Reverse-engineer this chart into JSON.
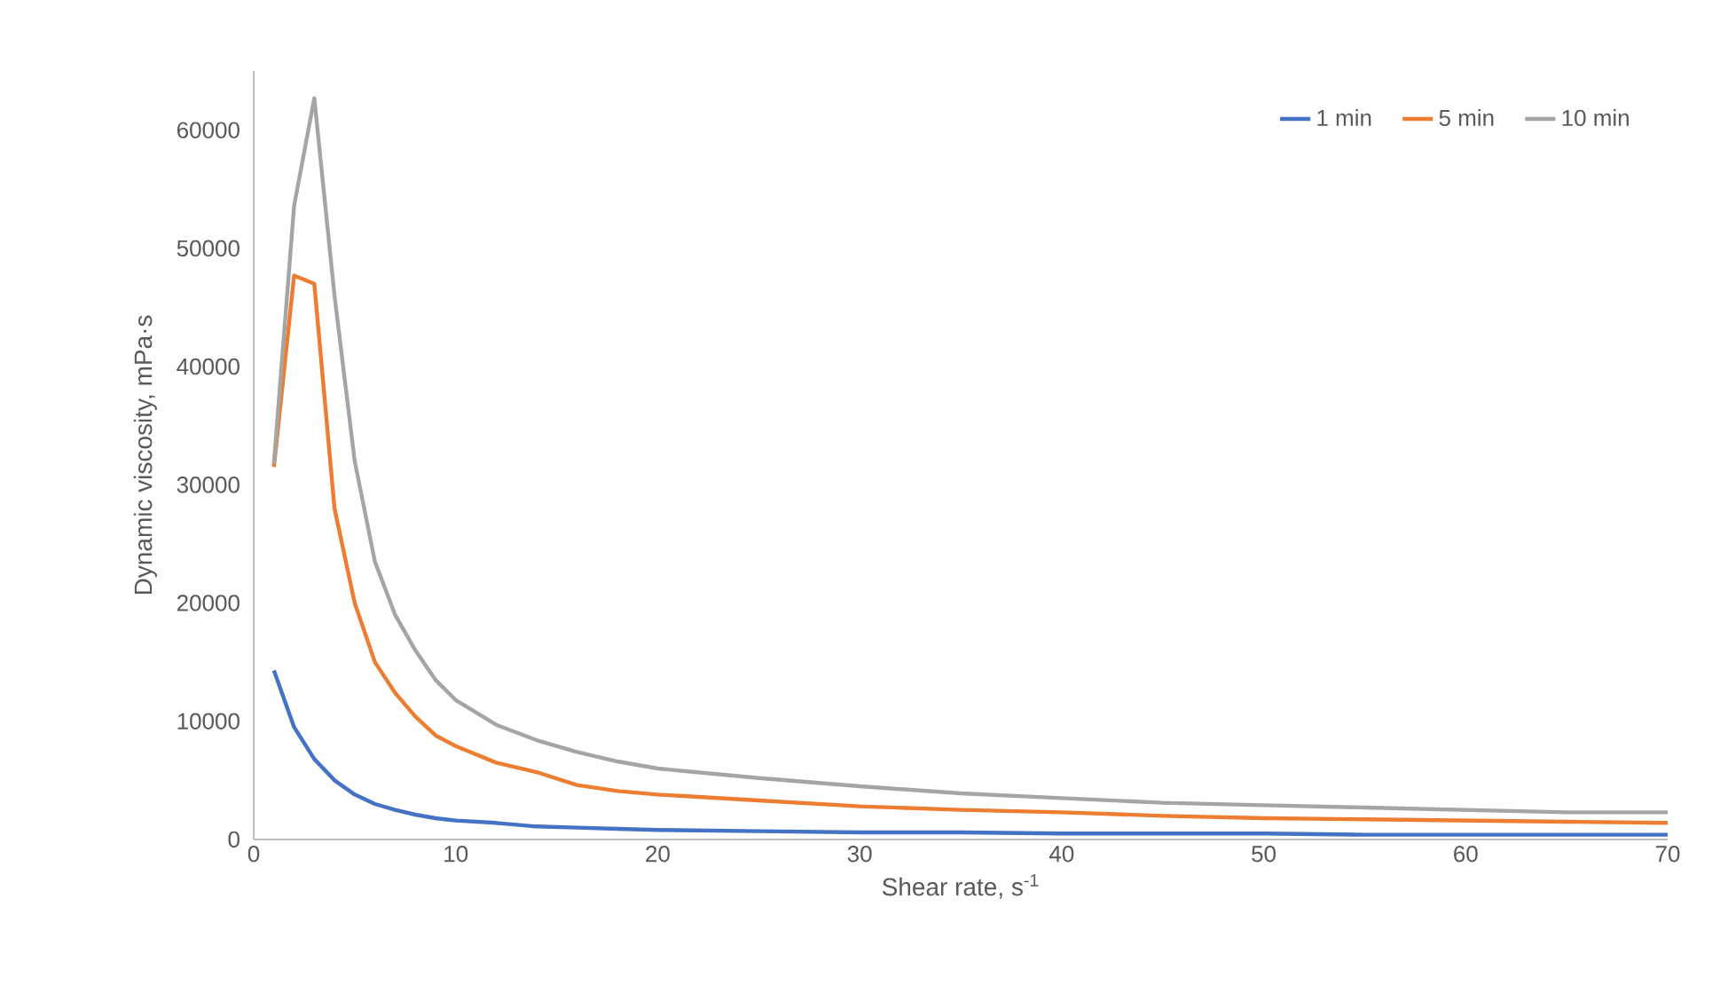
{
  "chart_data": {
    "type": "line",
    "xlabel": "Shear rate, s$^{-1}$",
    "ylabel": "Dynamic viscosity, mPa·s",
    "xlim": [
      0,
      70
    ],
    "xticks": [
      0,
      10,
      20,
      30,
      40,
      50,
      60,
      70
    ],
    "ylim": [
      0,
      65000
    ],
    "yticks": [
      0,
      10000,
      20000,
      30000,
      40000,
      50000,
      60000
    ],
    "grid": false,
    "legend": "top right",
    "marker": "none",
    "line_style": "solid",
    "x": [
      1,
      2,
      3,
      4,
      5,
      6,
      7,
      8,
      9,
      10,
      12,
      14,
      16,
      18,
      20,
      25,
      30,
      35,
      40,
      45,
      50,
      55,
      60,
      65,
      70
    ],
    "series": [
      {
        "name": "1 min",
        "color": "#4472c4",
        "values": [
          14300,
          9500,
          6800,
          5000,
          3800,
          3000,
          2500,
          2100,
          1800,
          1600,
          1400,
          1100,
          1000,
          900,
          800,
          700,
          600,
          600,
          500,
          500,
          500,
          400,
          400,
          400,
          400
        ]
      },
      {
        "name": "5 min",
        "color": "#ed7d31",
        "values": [
          31500,
          47700,
          47000,
          28000,
          20000,
          15000,
          12400,
          10400,
          8800,
          7900,
          6500,
          5700,
          4600,
          4100,
          3800,
          3300,
          2800,
          2500,
          2300,
          2000,
          1800,
          1700,
          1600,
          1500,
          1400
        ]
      },
      {
        "name": "10 min",
        "color": "#a5a5a5",
        "values": [
          31800,
          53600,
          62700,
          46000,
          32000,
          23500,
          19000,
          16000,
          13500,
          11800,
          9700,
          8400,
          7400,
          6600,
          6000,
          5200,
          4500,
          3900,
          3500,
          3100,
          2900,
          2700,
          2500,
          2300,
          2300
        ]
      }
    ]
  }
}
